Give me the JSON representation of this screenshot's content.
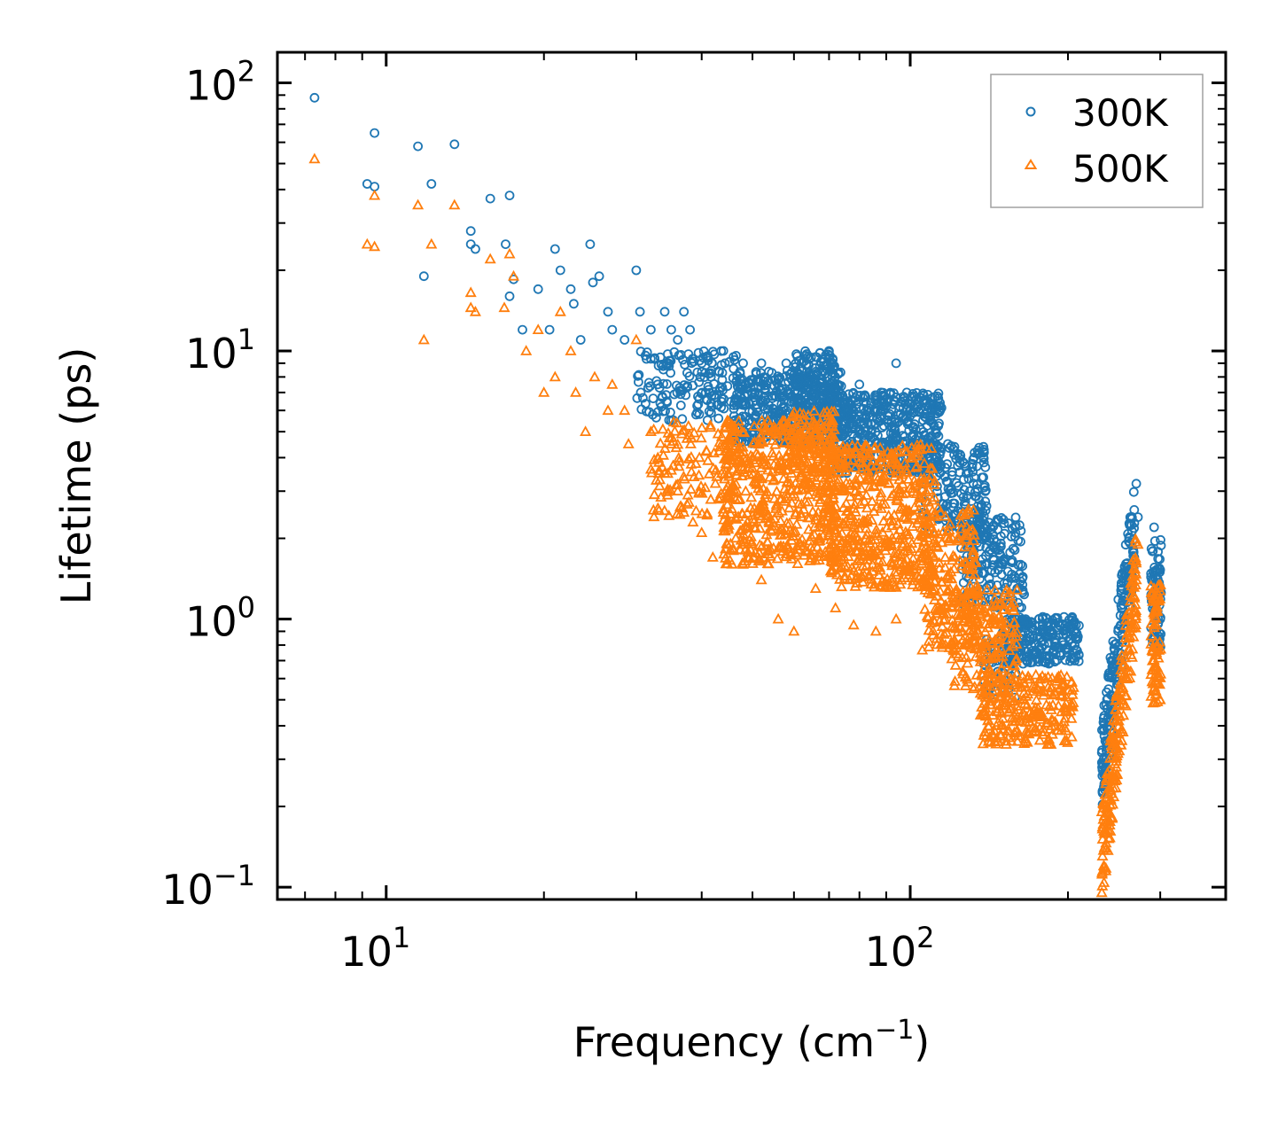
{
  "chart_data": {
    "type": "scatter",
    "title": "",
    "xlabel": "Frequency (cm",
    "xlabel_sup": "−1",
    "xlabel_end": ")",
    "ylabel": "Lifetime (ps)",
    "xscale": "log",
    "yscale": "log",
    "xlim": [
      6.2,
      400
    ],
    "ylim": [
      0.09,
      130
    ],
    "x_ticks": [
      {
        "base": "10",
        "exp": "1",
        "value": 10
      },
      {
        "base": "10",
        "exp": "2",
        "value": 100
      }
    ],
    "y_ticks": [
      {
        "base": "10",
        "exp": "−1",
        "value": 0.1
      },
      {
        "base": "10",
        "exp": "0",
        "value": 1
      },
      {
        "base": "10",
        "exp": "1",
        "value": 10
      },
      {
        "base": "10",
        "exp": "2",
        "value": 100
      }
    ],
    "legend_position": "top-right",
    "series": [
      {
        "name": "300K",
        "marker": "circle",
        "color": "#1f77b4",
        "points": [
          [
            7.3,
            88
          ],
          [
            9.2,
            42
          ],
          [
            9.5,
            41
          ],
          [
            9.5,
            65
          ],
          [
            11.5,
            58
          ],
          [
            12.2,
            42
          ],
          [
            11.8,
            19
          ],
          [
            13.5,
            59
          ],
          [
            14.5,
            28
          ],
          [
            14.5,
            25
          ],
          [
            14.8,
            24
          ],
          [
            15.8,
            37
          ],
          [
            17.2,
            38
          ],
          [
            16.9,
            25
          ],
          [
            17.5,
            18.5
          ],
          [
            17.2,
            16
          ],
          [
            18.2,
            12
          ],
          [
            19.5,
            17
          ],
          [
            20.5,
            12
          ],
          [
            21.0,
            24
          ],
          [
            21.5,
            20
          ],
          [
            22.5,
            17
          ],
          [
            22.8,
            15
          ],
          [
            23.5,
            11
          ],
          [
            24.5,
            25
          ],
          [
            24.8,
            18
          ],
          [
            25.5,
            19
          ],
          [
            26.5,
            14
          ],
          [
            27.0,
            12
          ],
          [
            28.5,
            11
          ],
          [
            30.0,
            20
          ],
          [
            30.5,
            14
          ],
          [
            32.0,
            12
          ],
          [
            34.0,
            14
          ],
          [
            35.0,
            12
          ],
          [
            36.0,
            11
          ],
          [
            37.0,
            14
          ],
          [
            38.0,
            12
          ],
          [
            40.0,
            9
          ],
          [
            44.0,
            10
          ],
          [
            46.0,
            9.5
          ],
          [
            48.0,
            9
          ],
          [
            52.0,
            9
          ],
          [
            58.0,
            9
          ],
          [
            62.0,
            9
          ],
          [
            66.0,
            9.5
          ],
          [
            70.0,
            10
          ],
          [
            76.0,
            6
          ],
          [
            80.0,
            7.5
          ],
          [
            88.0,
            7
          ],
          [
            94.0,
            9
          ],
          [
            100.0,
            6
          ],
          [
            106.0,
            6.5
          ],
          [
            110.0,
            6
          ],
          [
            118.0,
            4.5
          ],
          [
            124.0,
            4
          ],
          [
            130.0,
            3
          ],
          [
            136.0,
            2.5
          ],
          [
            142.0,
            2
          ],
          [
            150.0,
            1.6
          ],
          [
            160.0,
            1.3
          ],
          [
            166.0,
            1.0
          ],
          [
            176.0,
            1.0
          ],
          [
            186.0,
            0.9
          ],
          [
            196.0,
            0.8
          ],
          [
            206.0,
            0.7
          ],
          [
            234.0,
            0.3
          ],
          [
            244.0,
            0.7
          ],
          [
            254.0,
            1.3
          ],
          [
            262.0,
            2.0
          ],
          [
            270.0,
            3.2
          ],
          [
            272.0,
            2.4
          ],
          [
            292.0,
            2.2
          ],
          [
            296.0,
            1.5
          ],
          [
            300.0,
            1.0
          ]
        ],
        "bands": [
          {
            "x": [
              30,
              48
            ],
            "y": [
              5.5,
              10
            ],
            "n": 160
          },
          {
            "x": [
              46,
              74
            ],
            "y": [
              4.5,
              8.5
            ],
            "n": 420
          },
          {
            "x": [
              60,
              72
            ],
            "y": [
              6,
              10
            ],
            "n": 140
          },
          {
            "x": [
              72,
              115
            ],
            "y": [
              3.5,
              7
            ],
            "n": 480
          },
          {
            "x": [
              105,
              140
            ],
            "y": [
              2.0,
              4.5
            ],
            "n": 180
          },
          {
            "x": [
              125,
              165
            ],
            "y": [
              1.1,
              2.4
            ],
            "n": 190
          },
          {
            "x": [
              150,
              210
            ],
            "y": [
              0.68,
              1.02
            ],
            "n": 240
          },
          {
            "x": [
              138,
              160
            ],
            "y": [
              0.5,
              0.85
            ],
            "n": 50
          },
          {
            "x": [
              232,
              268
            ],
            "y": [
              0.28,
              2.2
            ],
            "n": 210,
            "trend": true
          },
          {
            "x": [
              288,
              301
            ],
            "y": [
              0.75,
              2.0
            ],
            "n": 80
          }
        ]
      },
      {
        "name": "500K",
        "marker": "triangle",
        "color": "#ff7f0e",
        "points": [
          [
            7.3,
            52
          ],
          [
            9.2,
            25
          ],
          [
            9.5,
            38
          ],
          [
            9.5,
            24.5
          ],
          [
            11.5,
            35
          ],
          [
            11.8,
            11
          ],
          [
            12.2,
            25
          ],
          [
            13.5,
            35
          ],
          [
            14.5,
            16.5
          ],
          [
            14.5,
            14.5
          ],
          [
            14.8,
            14
          ],
          [
            15.8,
            22
          ],
          [
            16.8,
            14.5
          ],
          [
            17.2,
            23
          ],
          [
            17.5,
            19
          ],
          [
            18.5,
            10
          ],
          [
            19.5,
            12
          ],
          [
            20.0,
            7
          ],
          [
            21.0,
            8
          ],
          [
            21.5,
            14
          ],
          [
            22.5,
            10
          ],
          [
            23.0,
            7
          ],
          [
            24.0,
            5
          ],
          [
            25.0,
            8
          ],
          [
            26.5,
            6
          ],
          [
            27.0,
            7.5
          ],
          [
            28.5,
            6
          ],
          [
            29.0,
            4.5
          ],
          [
            30.0,
            11
          ],
          [
            32.0,
            5
          ],
          [
            33.0,
            4
          ],
          [
            34.0,
            3.5
          ],
          [
            35.0,
            4.5
          ],
          [
            36.0,
            3
          ],
          [
            37.0,
            2.5
          ],
          [
            38.5,
            2.3
          ],
          [
            40.0,
            2.1
          ],
          [
            42.0,
            1.7
          ],
          [
            44.0,
            2.5
          ],
          [
            46.0,
            1.8
          ],
          [
            48.0,
            1.6
          ],
          [
            52.0,
            1.4
          ],
          [
            56.0,
            1.0
          ],
          [
            60.0,
            0.9
          ],
          [
            66.0,
            1.3
          ],
          [
            72.0,
            1.1
          ],
          [
            78.0,
            0.95
          ],
          [
            86.0,
            0.9
          ],
          [
            94.0,
            1.0
          ],
          [
            100.0,
            1.5
          ],
          [
            106.0,
            1.4
          ],
          [
            114.0,
            1.1
          ],
          [
            124.0,
            0.8
          ],
          [
            132.0,
            0.55
          ],
          [
            138.0,
            0.45
          ],
          [
            146.0,
            0.4
          ],
          [
            156.0,
            0.35
          ],
          [
            166.0,
            0.35
          ],
          [
            186.0,
            0.4
          ],
          [
            200.0,
            0.45
          ],
          [
            234.0,
            0.12
          ],
          [
            244.0,
            0.25
          ],
          [
            254.0,
            0.5
          ],
          [
            264.0,
            1.0
          ],
          [
            270.0,
            1.4
          ],
          [
            272.0,
            1.9
          ],
          [
            292.0,
            1.3
          ],
          [
            296.0,
            0.8
          ],
          [
            300.0,
            0.5
          ]
        ],
        "bands": [
          {
            "x": [
              32,
              48
            ],
            "y": [
              2.4,
              5.5
            ],
            "n": 130
          },
          {
            "x": [
              44,
              72
            ],
            "y": [
              1.6,
              5.5
            ],
            "n": 520
          },
          {
            "x": [
              58,
              72
            ],
            "y": [
              3.0,
              6.0
            ],
            "n": 120
          },
          {
            "x": [
              70,
              112
            ],
            "y": [
              1.3,
              4.5
            ],
            "n": 520
          },
          {
            "x": [
              105,
              135
            ],
            "y": [
              0.75,
              2.6
            ],
            "n": 220
          },
          {
            "x": [
              120,
              160
            ],
            "y": [
              0.55,
              1.3
            ],
            "n": 190
          },
          {
            "x": [
              136,
              205
            ],
            "y": [
              0.34,
              0.62
            ],
            "n": 260
          },
          {
            "x": [
              232,
              270
            ],
            "y": [
              0.13,
              1.4
            ],
            "n": 210,
            "trend": true
          },
          {
            "x": [
              288,
              301
            ],
            "y": [
              0.48,
              1.35
            ],
            "n": 80
          }
        ]
      }
    ]
  }
}
